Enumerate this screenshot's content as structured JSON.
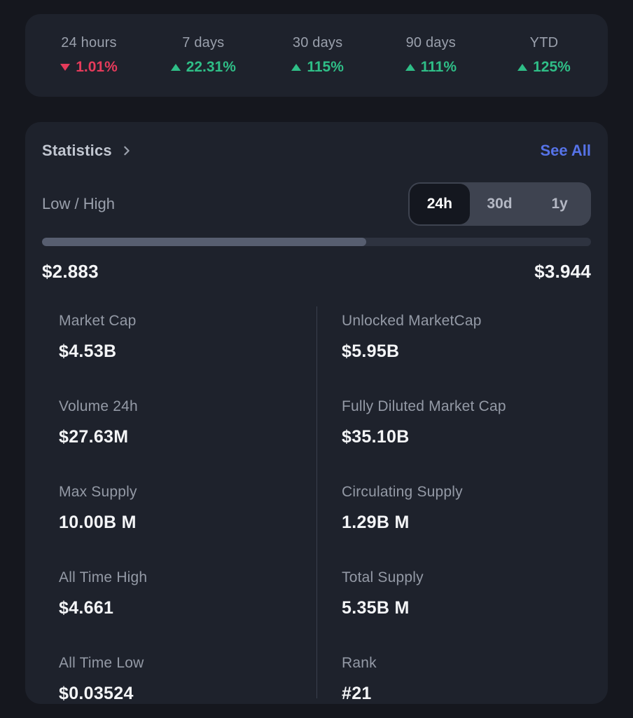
{
  "theme": {
    "page_bg": "#15171e",
    "card_bg": "#1e222c",
    "label_gray": "#949aa6",
    "title_gray": "#c2c7d1",
    "value_white": "#f4f5f7",
    "green": "#2fbe87",
    "red": "#e53b5b",
    "link_blue": "#5673e8",
    "toggle_bg": "#3e4350",
    "toggle_active_bg": "#14171f",
    "bar_fill": "#575e70",
    "bar_track": "#2e3340",
    "divider": "#3a404d"
  },
  "performance": {
    "items": [
      {
        "label": "24 hours",
        "value": "1.01%",
        "direction": "down"
      },
      {
        "label": "7 days",
        "value": "22.31%",
        "direction": "up"
      },
      {
        "label": "30 days",
        "value": "115%",
        "direction": "up"
      },
      {
        "label": "90 days",
        "value": "111%",
        "direction": "up"
      },
      {
        "label": "YTD",
        "value": "125%",
        "direction": "up"
      }
    ]
  },
  "statistics": {
    "title": "Statistics",
    "see_all": "See All",
    "low_high_label": "Low / High",
    "range_tabs": {
      "selected": "24h",
      "options": [
        "24h",
        "30d",
        "1y"
      ]
    },
    "low": "$2.883",
    "high": "$3.944",
    "progress_percent": 59,
    "left_column": [
      {
        "label": "Market Cap",
        "value": "$4.53B"
      },
      {
        "label": "Volume 24h",
        "value": "$27.63M"
      },
      {
        "label": "Max Supply",
        "value": "10.00B M"
      },
      {
        "label": "All Time High",
        "value": "$4.661"
      },
      {
        "label": "All Time Low",
        "value": "$0.03524"
      }
    ],
    "right_column": [
      {
        "label": "Unlocked MarketCap",
        "value": "$5.95B"
      },
      {
        "label": "Fully Diluted Market Cap",
        "value": "$35.10B"
      },
      {
        "label": "Circulating Supply",
        "value": "1.29B M"
      },
      {
        "label": "Total Supply",
        "value": "5.35B M"
      },
      {
        "label": "Rank",
        "value": "#21"
      }
    ]
  }
}
